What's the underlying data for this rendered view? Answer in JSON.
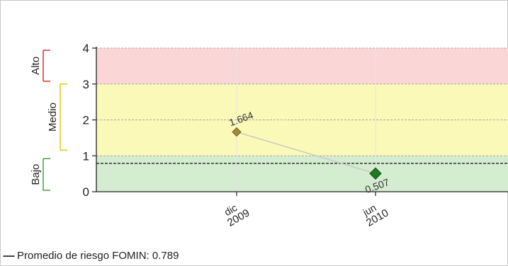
{
  "chart_data": {
    "type": "line",
    "title": "",
    "xlabel": "",
    "ylabel": "",
    "ylim": [
      0,
      4
    ],
    "yticks": [
      0,
      1,
      2,
      3,
      4
    ],
    "grid": true,
    "colors": {
      "bajo_band": "#d4ecd0",
      "medio_band": "#fbf9b8",
      "alto_band": "#fbd6d6",
      "bajo_bracket": "#2e9e2e",
      "medio_bracket": "#e8c200",
      "alto_bracket": "#e02020",
      "line": "#c8c8c8",
      "point_1": "#a08a3a",
      "point_2": "#1e7a1e",
      "average_line": "#222222"
    },
    "bands": [
      {
        "label": "Bajo",
        "from": 0,
        "to": 1
      },
      {
        "label": "Medio",
        "from": 1,
        "to": 3
      },
      {
        "label": "Alto",
        "from": 3,
        "to": 4
      }
    ],
    "categories": [
      {
        "month": "dic",
        "year": "2009"
      },
      {
        "month": "jun",
        "year": "2010"
      }
    ],
    "values": [
      1.664,
      0.507
    ],
    "value_labels": [
      "1.664",
      "0.507"
    ],
    "average": {
      "value": 0.789,
      "label": "Promedio de riesgo FOMIN: 0.789",
      "marker": "----"
    }
  }
}
